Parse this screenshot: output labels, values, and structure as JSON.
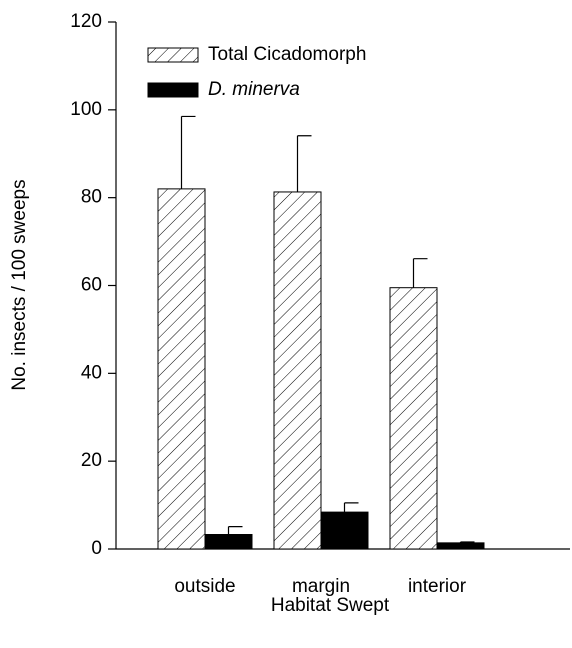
{
  "chart_data": {
    "type": "bar",
    "xlabel": "Habitat Swept",
    "ylabel": "No. insects / 100 sweeps",
    "categories": [
      "outside",
      "margin",
      "interior"
    ],
    "series": [
      {
        "name": "Total Cicadomorph",
        "color": "#ffffff",
        "pattern": "hatch",
        "values": [
          82,
          81.3,
          59.5
        ],
        "errors": [
          16.5,
          12.8,
          6.6
        ]
      },
      {
        "name": "D. minerva",
        "color": "#000000",
        "values": [
          3.3,
          8.4,
          1.4
        ],
        "errors": [
          1.8,
          2.1,
          0.2
        ]
      }
    ],
    "ylim": [
      0,
      120
    ],
    "yticks": [
      0,
      20,
      40,
      60,
      80,
      100,
      120
    ],
    "legend": "upper left"
  }
}
